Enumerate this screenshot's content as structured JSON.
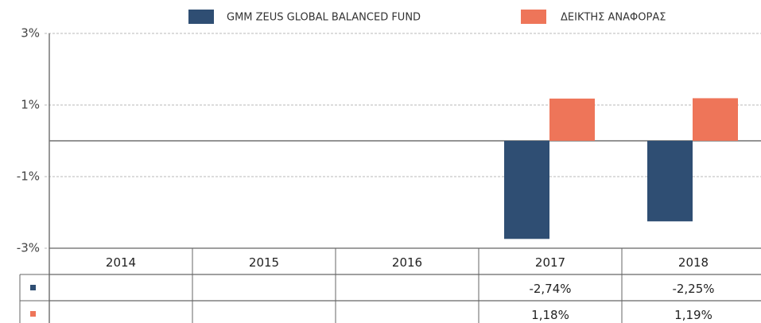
{
  "chart_data": {
    "type": "bar",
    "categories": [
      "2014",
      "2015",
      "2016",
      "2017",
      "2018"
    ],
    "series": [
      {
        "name": "GMM ZEUS GLOBAL BALANCED FUND",
        "color": "#2f4e73",
        "values": [
          null,
          null,
          null,
          -2.74,
          -2.25
        ],
        "value_labels": [
          null,
          null,
          null,
          "-2,74%",
          "-2,25%"
        ]
      },
      {
        "name": "ΔΕΙΚΤΗΣ ΑΝΑΦΟΡΑΣ",
        "color": "#ee7559",
        "values": [
          null,
          null,
          null,
          1.18,
          1.19
        ],
        "value_labels": [
          null,
          null,
          null,
          "1,18%",
          "1,19%"
        ]
      }
    ],
    "ylim": [
      -3,
      3
    ],
    "yticks": [
      {
        "value": -3,
        "label": "-3%"
      },
      {
        "value": -1,
        "label": "-1%"
      },
      {
        "value": 1,
        "label": "1%"
      },
      {
        "value": 3,
        "label": "3%"
      }
    ],
    "grid": true
  }
}
